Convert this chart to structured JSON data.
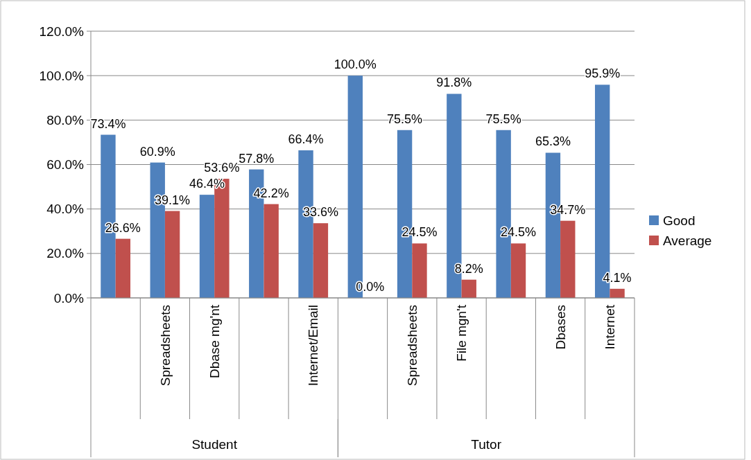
{
  "chart_data": {
    "type": "bar",
    "categories": [
      null,
      "Spreadsheets",
      "Dbase mg'nt",
      null,
      "Internet/Email",
      null,
      "Spreadsheets",
      "File mgn't",
      null,
      "Dbases",
      "Internet"
    ],
    "series": [
      {
        "name": "Good",
        "color": "#4f81bd",
        "values": [
          73.4,
          60.9,
          46.4,
          57.8,
          66.4,
          100,
          75.5,
          91.8,
          75.5,
          65.3,
          95.9
        ],
        "value_labels": [
          "73.4%",
          "60.9%",
          "46.4%",
          "57.8%",
          "66.4%",
          "100.0%",
          "75.5%",
          "91.8%",
          "75.5%",
          "65.3%",
          "95.9%"
        ]
      },
      {
        "name": "Average",
        "color": "#c0504d",
        "values": [
          26.6,
          39.1,
          53.6,
          42.2,
          33.6,
          0,
          24.5,
          8.2,
          24.5,
          34.7,
          4.1
        ],
        "value_labels": [
          "26.6%",
          "39.1%",
          "53.6%",
          "42.2%",
          "33.6%",
          "0.0%",
          "24.5%",
          "8.2%",
          "24.5%",
          "34.7%",
          "4.1%"
        ]
      }
    ],
    "ylim": [
      0,
      120
    ],
    "yticks": [
      {
        "value": 0,
        "label": "0.0%"
      },
      {
        "value": 20,
        "label": "20.0%"
      },
      {
        "value": 40,
        "label": "40.0%"
      },
      {
        "value": 60,
        "label": "60.0%"
      },
      {
        "value": 80,
        "label": "80.0%"
      },
      {
        "value": 100,
        "label": "100.0%"
      },
      {
        "value": 120,
        "label": "120.0%"
      }
    ],
    "grid": "y",
    "legend": "right",
    "annotations": [
      "Student",
      "Tutor"
    ]
  }
}
